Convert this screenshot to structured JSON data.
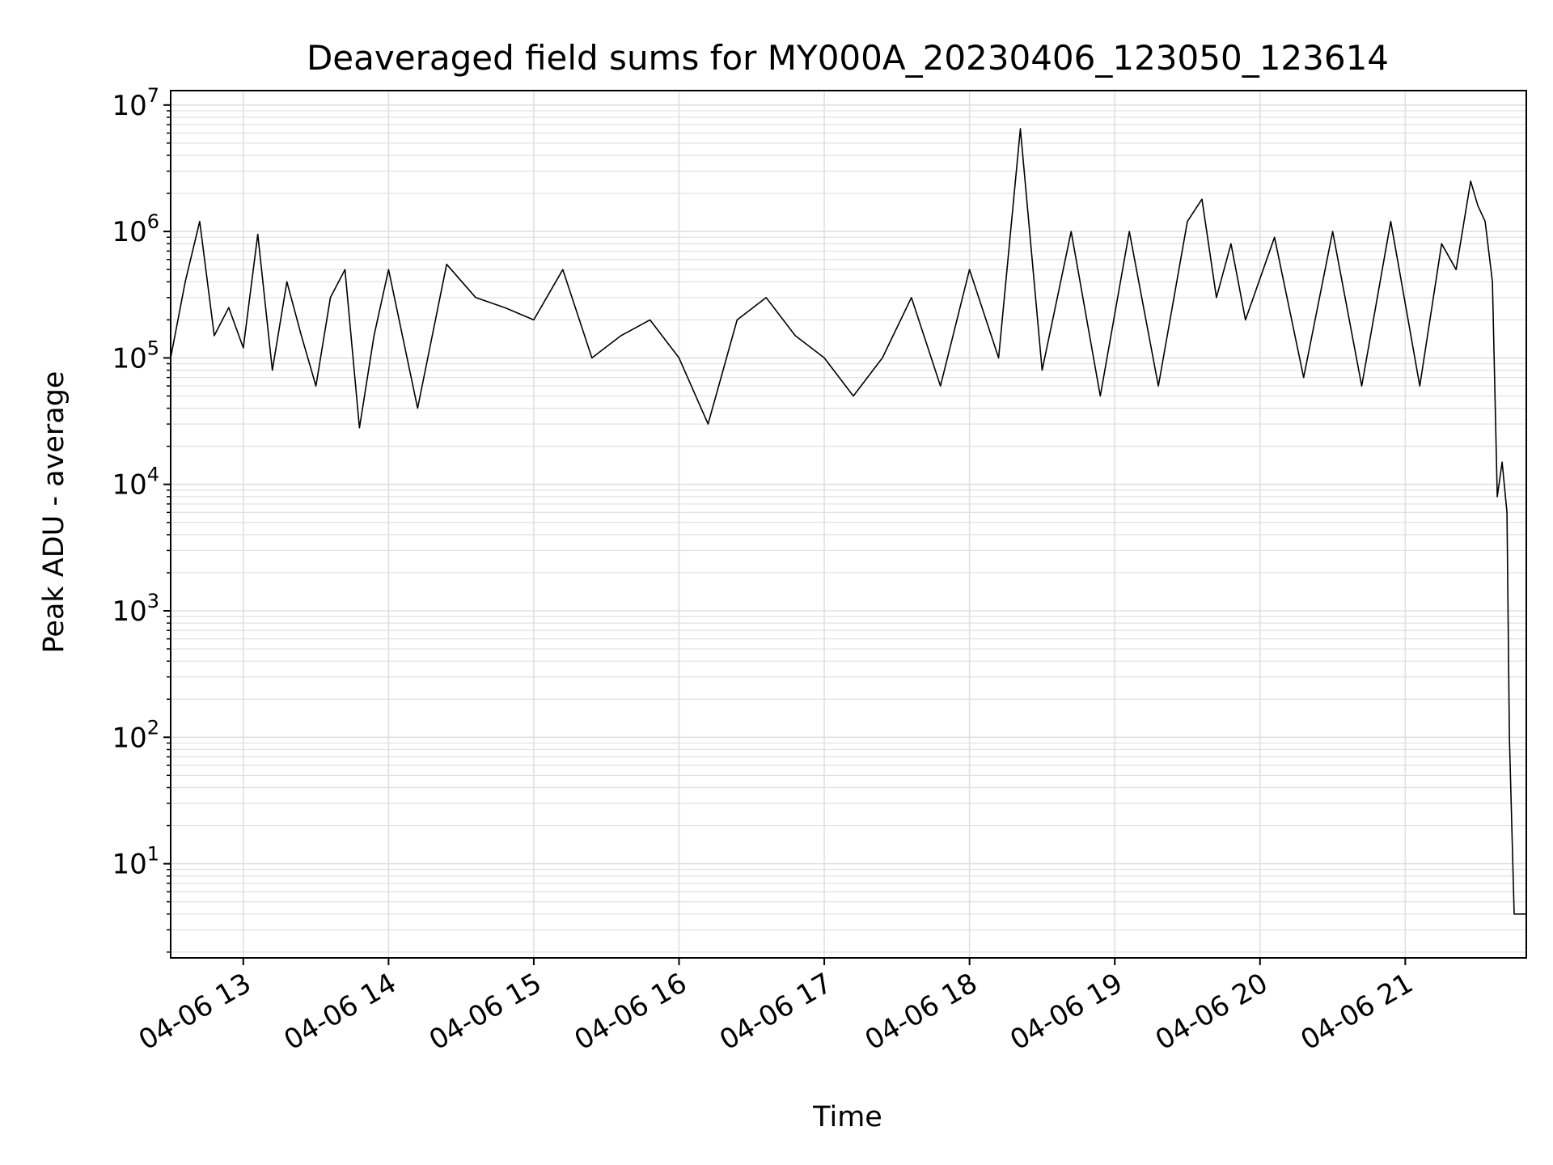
{
  "chart_data": {
    "type": "line",
    "title": "Deaveraged field sums for MY000A_20230406_123050_123614",
    "xlabel": "Time",
    "ylabel": "Peak ADU - average",
    "y_scale": "log",
    "ylim": [
      1.8,
      13000000
    ],
    "xlim": [
      "2023-04-06 12:30",
      "2023-04-06 21:50"
    ],
    "grid": true,
    "legend": "none",
    "line_color": "#000000",
    "grid_color": "#e0e0e0",
    "y_ticks": [
      {
        "base": "10",
        "exp": "1"
      },
      {
        "base": "10",
        "exp": "2"
      },
      {
        "base": "10",
        "exp": "3"
      },
      {
        "base": "10",
        "exp": "4"
      },
      {
        "base": "10",
        "exp": "5"
      },
      {
        "base": "10",
        "exp": "6"
      },
      {
        "base": "10",
        "exp": "7"
      }
    ],
    "x_ticks": [
      "04-06 13",
      "04-06 14",
      "04-06 15",
      "04-06 16",
      "04-06 17",
      "04-06 18",
      "04-06 19",
      "04-06 20",
      "04-06 21"
    ],
    "series": [
      {
        "x": [
          "2023-04-06 12:30",
          "2023-04-06 12:36",
          "2023-04-06 12:42",
          "2023-04-06 12:48",
          "2023-04-06 12:54",
          "2023-04-06 13:00",
          "2023-04-06 13:06",
          "2023-04-06 13:12",
          "2023-04-06 13:18",
          "2023-04-06 13:24",
          "2023-04-06 13:30",
          "2023-04-06 13:36",
          "2023-04-06 13:42",
          "2023-04-06 13:48",
          "2023-04-06 13:54",
          "2023-04-06 14:00",
          "2023-04-06 14:12",
          "2023-04-06 14:24",
          "2023-04-06 14:36",
          "2023-04-06 14:48",
          "2023-04-06 15:00",
          "2023-04-06 15:12",
          "2023-04-06 15:24",
          "2023-04-06 15:36",
          "2023-04-06 15:48",
          "2023-04-06 16:00",
          "2023-04-06 16:12",
          "2023-04-06 16:24",
          "2023-04-06 16:36",
          "2023-04-06 16:48",
          "2023-04-06 17:00",
          "2023-04-06 17:12",
          "2023-04-06 17:24",
          "2023-04-06 17:36",
          "2023-04-06 17:48",
          "2023-04-06 18:00",
          "2023-04-06 18:12",
          "2023-04-06 18:21",
          "2023-04-06 18:30",
          "2023-04-06 18:42",
          "2023-04-06 18:54",
          "2023-04-06 19:06",
          "2023-04-06 19:18",
          "2023-04-06 19:30",
          "2023-04-06 19:36",
          "2023-04-06 19:42",
          "2023-04-06 19:48",
          "2023-04-06 19:54",
          "2023-04-06 20:06",
          "2023-04-06 20:18",
          "2023-04-06 20:30",
          "2023-04-06 20:42",
          "2023-04-06 20:54",
          "2023-04-06 21:06",
          "2023-04-06 21:15",
          "2023-04-06 21:21",
          "2023-04-06 21:27",
          "2023-04-06 21:30",
          "2023-04-06 21:33",
          "2023-04-06 21:36",
          "2023-04-06 21:38",
          "2023-04-06 21:40",
          "2023-04-06 21:42",
          "2023-04-06 21:43",
          "2023-04-06 21:45",
          "2023-04-06 21:46",
          "2023-04-06 21:48",
          "2023-04-06 21:50"
        ],
        "values": [
          100000,
          400000,
          1200000,
          150000,
          250000,
          120000,
          950000,
          80000,
          400000,
          150000,
          60000,
          300000,
          500000,
          28000,
          150000,
          500000,
          40000,
          550000,
          300000,
          250000,
          200000,
          500000,
          100000,
          150000,
          200000,
          100000,
          30000,
          200000,
          300000,
          150000,
          100000,
          50000,
          100000,
          300000,
          60000,
          500000,
          100000,
          6500000,
          80000,
          1000000,
          50000,
          1000000,
          60000,
          1200000,
          1800000,
          300000,
          800000,
          200000,
          900000,
          70000,
          1000000,
          60000,
          1200000,
          60000,
          800000,
          500000,
          2500000,
          1600000,
          1200000,
          400000,
          8000,
          15000,
          6000,
          100,
          4,
          4,
          4,
          4
        ]
      }
    ]
  }
}
